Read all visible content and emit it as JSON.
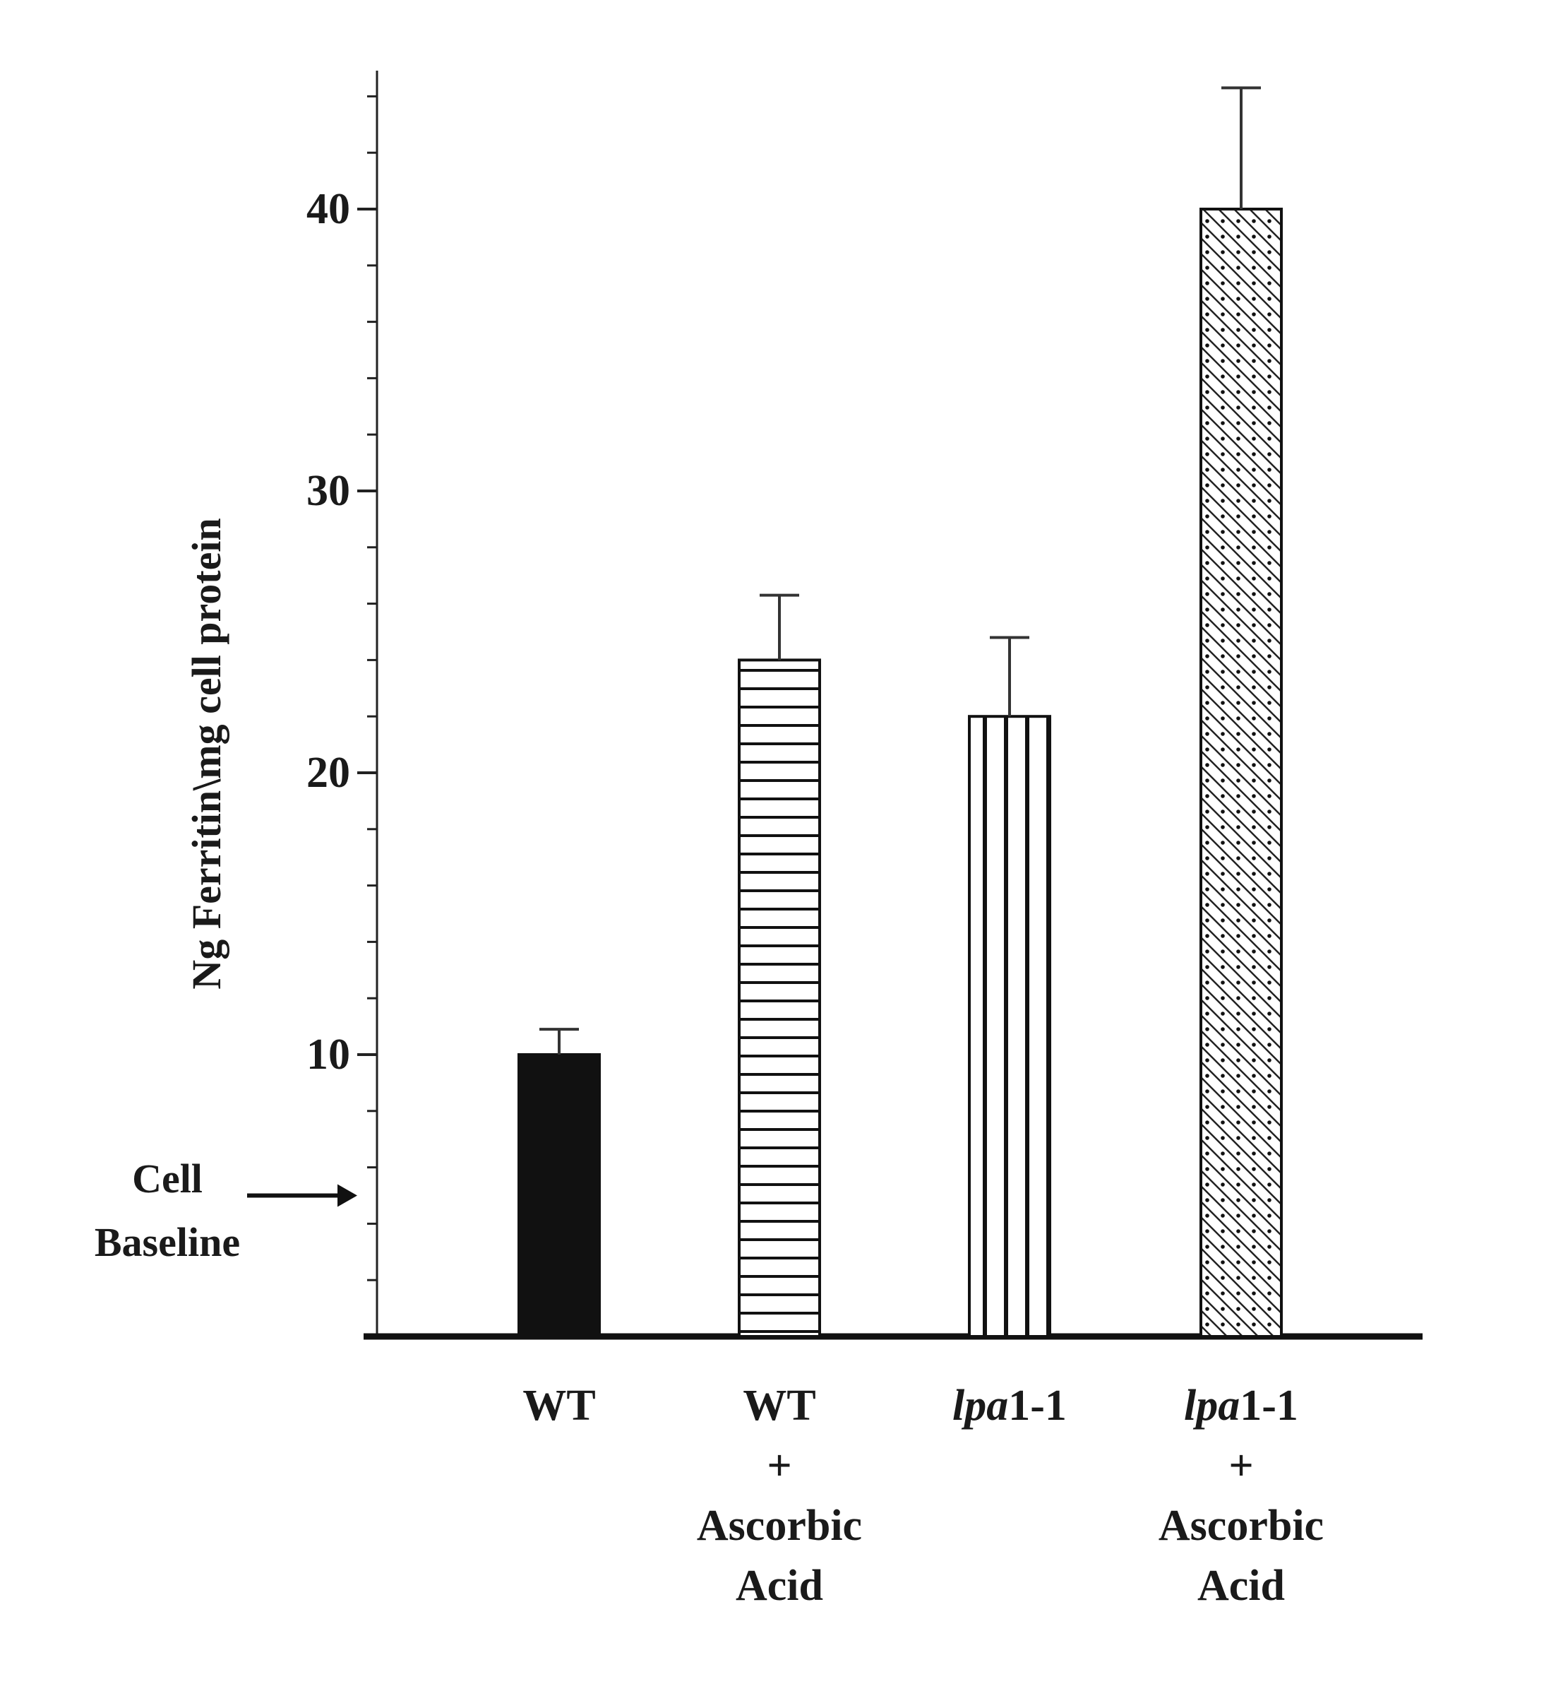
{
  "chart_data": {
    "type": "bar",
    "title": "",
    "xlabel": "",
    "ylabel": "Ng Ferritin\\mg cell protein",
    "ylim": [
      0,
      44.5
    ],
    "yticks": [
      10,
      20,
      30,
      40
    ],
    "minor_tick_step": 2,
    "grid": false,
    "categories": [
      {
        "lines": [
          "WT"
        ]
      },
      {
        "lines": [
          "WT",
          "+",
          "Ascorbic",
          "Acid"
        ]
      },
      {
        "lines": [
          "lpa1-1"
        ],
        "italic_prefix": "lpa",
        "rest": "1-1"
      },
      {
        "lines": [
          "lpa1-1",
          "+",
          "Ascorbic",
          "Acid"
        ],
        "italic_prefix": "lpa",
        "rest": "1-1"
      }
    ],
    "category_names": [
      "WT",
      "WT + Ascorbic Acid",
      "lpa1-1",
      "lpa1-1 + Ascorbic Acid"
    ],
    "values": [
      10.0,
      24.0,
      22.0,
      40.0
    ],
    "error_upper": [
      0.9,
      2.3,
      2.8,
      4.3
    ],
    "patterns": [
      "solid-black",
      "horizontal-lines",
      "vertical-lines",
      "diagonal-dotted"
    ],
    "annotation": {
      "text_lines": [
        "Cell",
        "Baseline"
      ],
      "value": 5.0,
      "arrow": "right"
    }
  }
}
